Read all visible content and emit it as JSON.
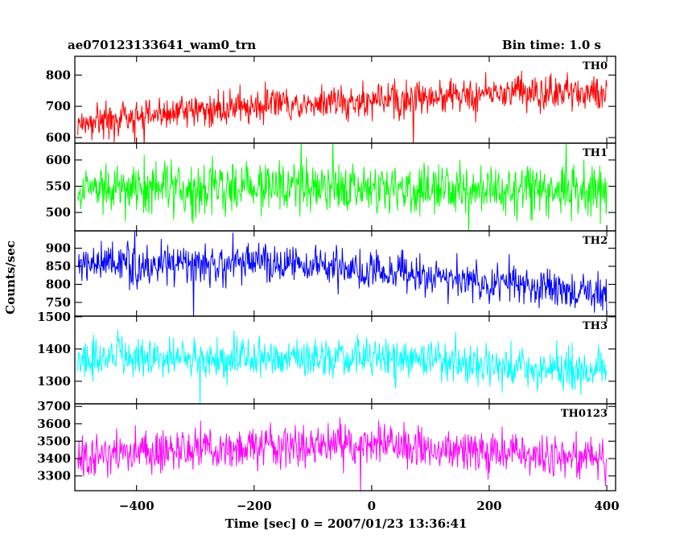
{
  "chart_data": {
    "type": "line",
    "title_left": "ae070123133641_wam0_trn",
    "title_right": "Bin time: 1.0 s",
    "xlabel": "Time [sec] 0 = 2007/01/23 13:36:41",
    "ylabel": "Counts/sec",
    "xlim": [
      -505,
      415
    ],
    "x_ticks": [
      -400,
      -200,
      0,
      200,
      400
    ],
    "x_tick_labels": [
      "−400",
      "−200",
      "0",
      "200",
      "400"
    ],
    "x_data_range": [
      -500,
      400
    ],
    "bin_time": 1.0,
    "grid": false,
    "panels": [
      {
        "name": "TH0",
        "color": "#ff0000",
        "ylim": [
          582,
          860
        ],
        "yticks": [
          600,
          700,
          800
        ],
        "baseline": [
          [
            -500,
            645
          ],
          [
            -300,
            690
          ],
          [
            -100,
            710
          ],
          [
            0,
            712
          ],
          [
            100,
            725
          ],
          [
            250,
            745
          ],
          [
            400,
            745
          ]
        ],
        "noise": 28,
        "excursion": [
          570,
          870
        ]
      },
      {
        "name": "TH1",
        "color": "#00ff00",
        "ylim": [
          465,
          632
        ],
        "yticks": [
          500,
          550,
          600
        ],
        "baseline": [
          [
            -500,
            545
          ],
          [
            -100,
            548
          ],
          [
            0,
            545
          ],
          [
            400,
            542
          ]
        ],
        "noise": 25,
        "excursion": [
          460,
          640
        ]
      },
      {
        "name": "TH2",
        "color": "#0000ff",
        "ylim": [
          712,
          948
        ],
        "yticks": [
          750,
          800,
          850,
          900
        ],
        "baseline": [
          [
            -500,
            860
          ],
          [
            -200,
            858
          ],
          [
            -50,
            850
          ],
          [
            100,
            820
          ],
          [
            250,
            795
          ],
          [
            400,
            775
          ]
        ],
        "noise": 28,
        "excursion": [
          700,
          950
        ]
      },
      {
        "name": "TH3",
        "color": "#00ffff",
        "ylim": [
          1230,
          1502
        ],
        "yticks": [
          1300,
          1400,
          1500
        ],
        "baseline": [
          [
            -500,
            1375
          ],
          [
            -200,
            1375
          ],
          [
            0,
            1370
          ],
          [
            200,
            1350
          ],
          [
            350,
            1330
          ],
          [
            400,
            1345
          ]
        ],
        "noise": 32,
        "excursion": [
          1215,
          1510
        ]
      },
      {
        "name": "TH0123",
        "color": "#ff00ff",
        "ylim": [
          3215,
          3715
        ],
        "yticks": [
          3300,
          3400,
          3500,
          3600,
          3700
        ],
        "baseline": [
          [
            -500,
            3410
          ],
          [
            -200,
            3470
          ],
          [
            0,
            3480
          ],
          [
            200,
            3430
          ],
          [
            400,
            3400
          ]
        ],
        "noise": 60,
        "excursion": [
          3200,
          3720
        ]
      }
    ]
  }
}
